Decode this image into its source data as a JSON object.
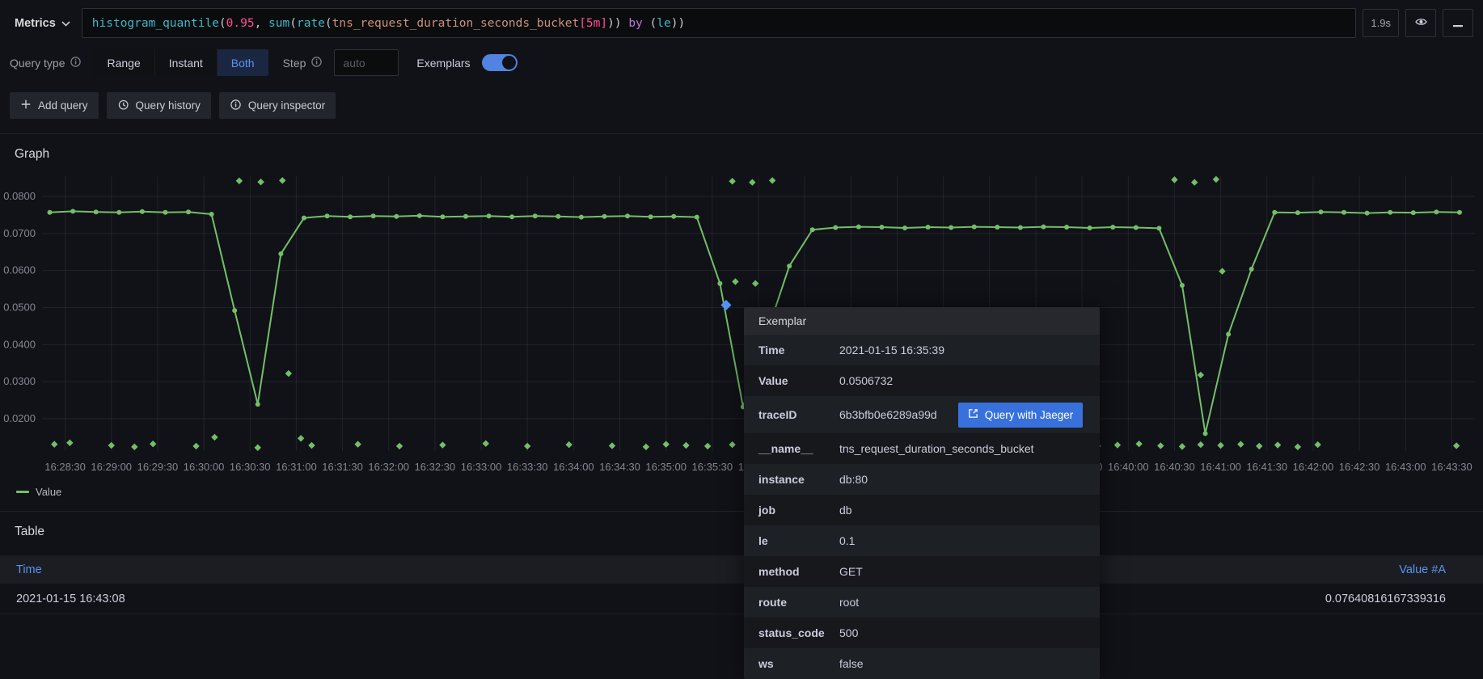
{
  "toolbar": {
    "metrics_label": "Metrics",
    "query_time": "1.9s"
  },
  "query": {
    "tokens": [
      {
        "t": "fn",
        "s": "histogram_quantile"
      },
      {
        "t": "p",
        "s": "("
      },
      {
        "t": "num",
        "s": "0.95"
      },
      {
        "t": "p",
        "s": ", "
      },
      {
        "t": "fn",
        "s": "sum"
      },
      {
        "t": "p",
        "s": "("
      },
      {
        "t": "fn",
        "s": "rate"
      },
      {
        "t": "p",
        "s": "("
      },
      {
        "t": "metric",
        "s": "tns_request_duration_seconds_bucket"
      },
      {
        "t": "num",
        "s": "[5m]"
      },
      {
        "t": "p",
        "s": ")) "
      },
      {
        "t": "kw",
        "s": "by"
      },
      {
        "t": "p",
        "s": " ("
      },
      {
        "t": "lbl",
        "s": "le"
      },
      {
        "t": "p",
        "s": "))"
      }
    ]
  },
  "options": {
    "query_type_label": "Query type",
    "range_label": "Range",
    "instant_label": "Instant",
    "both_label": "Both",
    "step_label": "Step",
    "step_placeholder": "auto",
    "exemplars_label": "Exemplars"
  },
  "actions": {
    "add_query": "Add query",
    "query_history": "Query history",
    "query_inspector": "Query inspector"
  },
  "graph_panel": {
    "title": "Graph",
    "legend": "Value"
  },
  "chart_data": {
    "type": "line",
    "title": "Graph",
    "x_start": "16:28:15",
    "x_end": "16:43:45",
    "x_tick_interval_s": 30,
    "y_min": 0.02,
    "y_max": 0.08,
    "y_ticks": [
      "0.0200",
      "0.0300",
      "0.0400",
      "0.0500",
      "0.0600",
      "0.0700",
      "0.0800"
    ],
    "series": [
      {
        "name": "Value",
        "color": "#73bf69",
        "points": [
          [
            5,
            0.0757
          ],
          [
            20,
            0.076
          ],
          [
            35,
            0.0758
          ],
          [
            50,
            0.0757
          ],
          [
            65,
            0.0759
          ],
          [
            80,
            0.0757
          ],
          [
            95,
            0.0758
          ],
          [
            110,
            0.0752
          ],
          [
            125,
            0.0492
          ],
          [
            140,
            0.0239
          ],
          [
            155,
            0.0645
          ],
          [
            170,
            0.0742
          ],
          [
            185,
            0.0747
          ],
          [
            200,
            0.0745
          ],
          [
            215,
            0.0747
          ],
          [
            230,
            0.0746
          ],
          [
            245,
            0.0748
          ],
          [
            260,
            0.0745
          ],
          [
            275,
            0.0746
          ],
          [
            290,
            0.0747
          ],
          [
            305,
            0.0745
          ],
          [
            320,
            0.0747
          ],
          [
            335,
            0.0746
          ],
          [
            350,
            0.0744
          ],
          [
            365,
            0.0746
          ],
          [
            380,
            0.0747
          ],
          [
            395,
            0.0745
          ],
          [
            410,
            0.0746
          ],
          [
            425,
            0.0744
          ],
          [
            440,
            0.0565
          ],
          [
            455,
            0.0232
          ],
          [
            470,
            0.0425
          ],
          [
            485,
            0.0612
          ],
          [
            500,
            0.071
          ],
          [
            515,
            0.0716
          ],
          [
            530,
            0.0718
          ],
          [
            545,
            0.0717
          ],
          [
            560,
            0.0715
          ],
          [
            575,
            0.0717
          ],
          [
            590,
            0.0716
          ],
          [
            605,
            0.0718
          ],
          [
            620,
            0.0717
          ],
          [
            635,
            0.0716
          ],
          [
            650,
            0.0718
          ],
          [
            665,
            0.0717
          ],
          [
            680,
            0.0715
          ],
          [
            695,
            0.0717
          ],
          [
            710,
            0.0716
          ],
          [
            725,
            0.0714
          ],
          [
            740,
            0.056
          ],
          [
            755,
            0.016
          ],
          [
            770,
            0.0428
          ],
          [
            785,
            0.0604
          ],
          [
            800,
            0.0757
          ],
          [
            815,
            0.0756
          ],
          [
            830,
            0.0758
          ],
          [
            845,
            0.0757
          ],
          [
            860,
            0.0755
          ],
          [
            875,
            0.0757
          ],
          [
            890,
            0.0756
          ],
          [
            905,
            0.0758
          ],
          [
            920,
            0.0757
          ]
        ]
      }
    ],
    "exemplars": {
      "color": "#73bf69",
      "points": [
        [
          8,
          0.0131
        ],
        [
          18,
          0.0135
        ],
        [
          45,
          0.0128
        ],
        [
          60,
          0.0124
        ],
        [
          72,
          0.0132
        ],
        [
          100,
          0.0126
        ],
        [
          112,
          0.015
        ],
        [
          140,
          0.0122
        ],
        [
          160,
          0.0322
        ],
        [
          168,
          0.0147
        ],
        [
          175,
          0.0128
        ],
        [
          205,
          0.0131
        ],
        [
          232,
          0.0126
        ],
        [
          260,
          0.0129
        ],
        [
          288,
          0.0133
        ],
        [
          315,
          0.0126
        ],
        [
          342,
          0.013
        ],
        [
          370,
          0.0127
        ],
        [
          392,
          0.0124
        ],
        [
          405,
          0.0131
        ],
        [
          418,
          0.0128
        ],
        [
          432,
          0.0126
        ],
        [
          448,
          0.013
        ],
        [
          128,
          0.0842
        ],
        [
          142,
          0.0839
        ],
        [
          156,
          0.0843
        ],
        [
          448,
          0.0841
        ],
        [
          461,
          0.0838
        ],
        [
          474,
          0.0843
        ],
        [
          735,
          0.0845
        ],
        [
          748,
          0.0838
        ],
        [
          762,
          0.0846
        ],
        [
          450,
          0.057
        ],
        [
          463,
          0.0565
        ],
        [
          752,
          0.0318
        ],
        [
          766,
          0.0598
        ],
        [
          592,
          0.0128
        ],
        [
          605,
          0.0125
        ],
        [
          618,
          0.0131
        ],
        [
          648,
          0.0127
        ],
        [
          660,
          0.0124
        ],
        [
          672,
          0.013
        ],
        [
          685,
          0.0126
        ],
        [
          698,
          0.0129
        ],
        [
          712,
          0.0132
        ],
        [
          726,
          0.0127
        ],
        [
          740,
          0.0125
        ],
        [
          752,
          0.013
        ],
        [
          765,
          0.0128
        ],
        [
          778,
          0.0131
        ],
        [
          790,
          0.0126
        ],
        [
          802,
          0.0129
        ],
        [
          815,
          0.0124
        ],
        [
          828,
          0.013
        ],
        [
          918,
          0.0127
        ]
      ]
    },
    "selected_exemplar": {
      "color": "#5794f2",
      "t": 444,
      "value": 0.0506732
    }
  },
  "exemplar_tooltip": {
    "title": "Exemplar",
    "rows": [
      {
        "label": "Time",
        "value": "2021-01-15 16:35:39"
      },
      {
        "label": "Value",
        "value": "0.0506732"
      },
      {
        "label": "traceID",
        "value": "6b3bfb0e6289a99d",
        "action": "Query with Jaeger"
      },
      {
        "label": "__name__",
        "value": "tns_request_duration_seconds_bucket"
      },
      {
        "label": "instance",
        "value": "db:80"
      },
      {
        "label": "job",
        "value": "db"
      },
      {
        "label": "le",
        "value": "0.1"
      },
      {
        "label": "method",
        "value": "GET"
      },
      {
        "label": "route",
        "value": "root"
      },
      {
        "label": "status_code",
        "value": "500"
      },
      {
        "label": "ws",
        "value": "false"
      }
    ]
  },
  "table": {
    "title": "Table",
    "columns": [
      "Time",
      "Value #A"
    ],
    "rows": [
      [
        "2021-01-15 16:43:08",
        "0.07640816167339316"
      ]
    ]
  }
}
